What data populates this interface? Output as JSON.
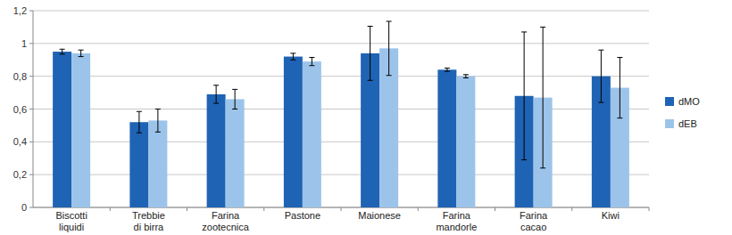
{
  "chart_data": {
    "type": "bar",
    "categories": [
      "Biscotti liquidi",
      "Trebbie di birra",
      "Farina zootecnica",
      "Pastone",
      "Maionese",
      "Farina mandorle",
      "Farina cacao",
      "Kiwi"
    ],
    "series": [
      {
        "name": "dMO",
        "color": "#1f63b4",
        "values": [
          0.95,
          0.52,
          0.69,
          0.92,
          0.94,
          0.84,
          0.68,
          0.8
        ],
        "errors": [
          0.015,
          0.065,
          0.055,
          0.02,
          0.165,
          0.01,
          0.39,
          0.16
        ]
      },
      {
        "name": "dEB",
        "color": "#9cc4ea",
        "values": [
          0.94,
          0.53,
          0.66,
          0.89,
          0.97,
          0.8,
          0.67,
          0.73
        ],
        "errors": [
          0.02,
          0.07,
          0.06,
          0.025,
          0.165,
          0.01,
          0.43,
          0.185
        ]
      }
    ],
    "ylim": [
      0,
      1.2
    ],
    "yticks": [
      0,
      {
        "value": 0.2,
        "label": "0,2"
      },
      {
        "value": 0.4,
        "label": "0,4"
      },
      {
        "value": 0.6,
        "label": "0,6"
      },
      {
        "value": 0.8,
        "label": "0,8"
      },
      1,
      {
        "value": 1.2,
        "label": "1,2"
      }
    ],
    "grid": true,
    "legend": "right"
  }
}
